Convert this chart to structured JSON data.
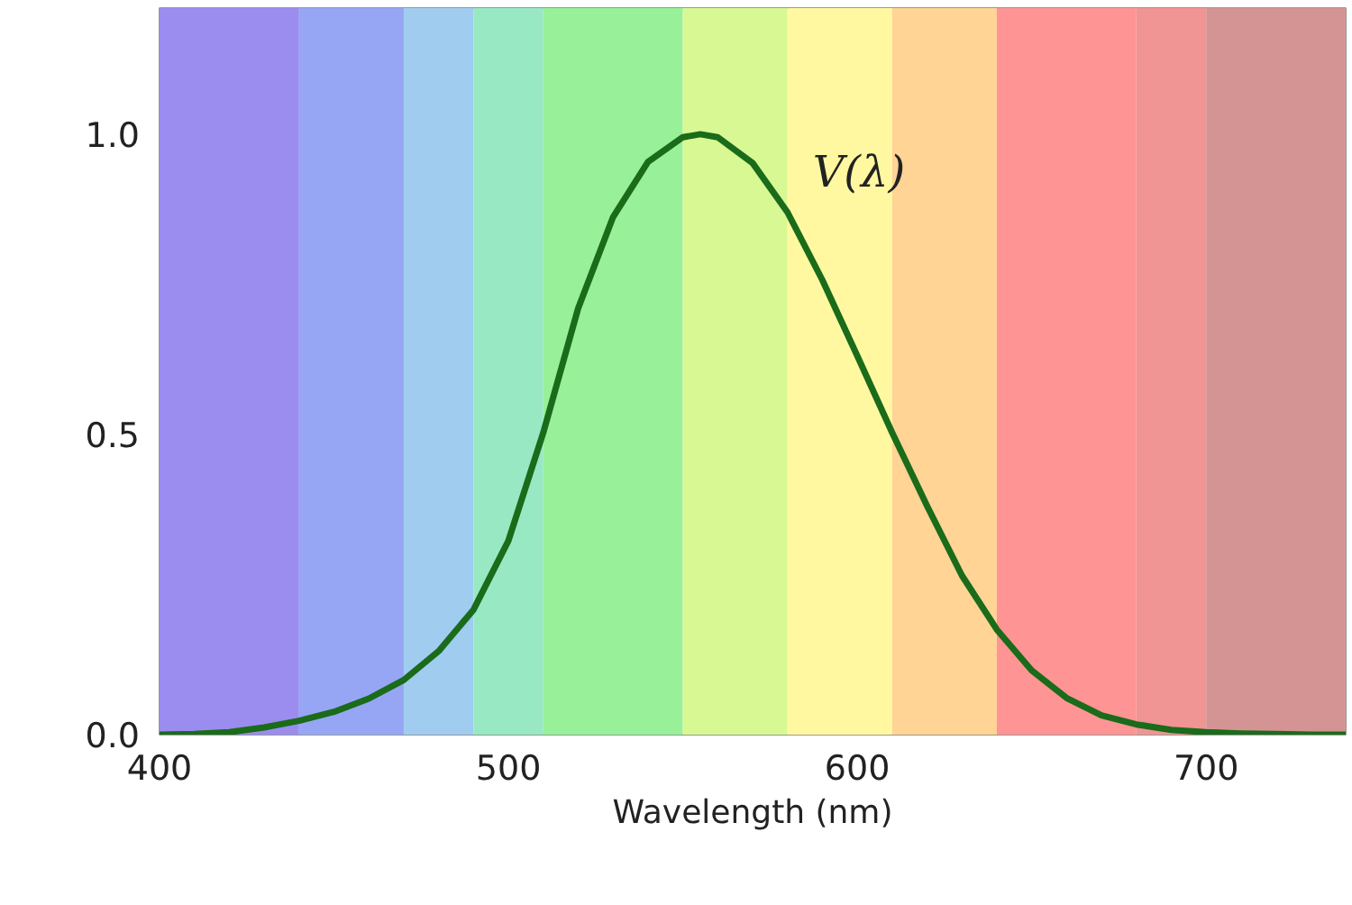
{
  "chart_data": {
    "type": "line",
    "xlabel": "Wavelength (nm)",
    "x": [
      400,
      410,
      420,
      430,
      440,
      450,
      460,
      470,
      480,
      490,
      500,
      510,
      520,
      530,
      540,
      550,
      555,
      560,
      570,
      580,
      590,
      600,
      610,
      620,
      630,
      640,
      650,
      660,
      670,
      680,
      690,
      700,
      710,
      720,
      730,
      740
    ],
    "series": [
      {
        "name": "V(λ)",
        "color": "#1a6b1a",
        "values": [
          0.0,
          0.001,
          0.004,
          0.012,
          0.023,
          0.038,
          0.06,
          0.091,
          0.139,
          0.208,
          0.323,
          0.503,
          0.71,
          0.862,
          0.954,
          0.995,
          1.0,
          0.995,
          0.952,
          0.87,
          0.757,
          0.631,
          0.503,
          0.381,
          0.265,
          0.175,
          0.107,
          0.061,
          0.032,
          0.017,
          0.008,
          0.004,
          0.002,
          0.001,
          0.0,
          0.0
        ]
      }
    ],
    "xlim": [
      400,
      740
    ],
    "ylim": [
      0,
      1.21
    ],
    "xticks": [
      400,
      500,
      600,
      700
    ],
    "yticks": [
      {
        "value": 0,
        "label": "0.0"
      },
      {
        "value": 0.5,
        "label": "0.5"
      },
      {
        "value": 1,
        "label": "1.0"
      }
    ],
    "grid": true,
    "legend": false,
    "marker": "none",
    "line_style": "solid",
    "bands": [
      {
        "axis": "x",
        "from": 400,
        "to": 440,
        "color": "#9b8cf0"
      },
      {
        "axis": "x",
        "from": 440,
        "to": 470,
        "color": "#96a6f4"
      },
      {
        "axis": "x",
        "from": 470,
        "to": 490,
        "color": "#a0ccf0"
      },
      {
        "axis": "x",
        "from": 490,
        "to": 510,
        "color": "#98e8c4"
      },
      {
        "axis": "x",
        "from": 510,
        "to": 550,
        "color": "#98f098"
      },
      {
        "axis": "x",
        "from": 550,
        "to": 580,
        "color": "#d8f894"
      },
      {
        "axis": "x",
        "from": 580,
        "to": 610,
        "color": "#fff8a0"
      },
      {
        "axis": "x",
        "from": 610,
        "to": 640,
        "color": "#ffd494"
      },
      {
        "axis": "x",
        "from": 640,
        "to": 680,
        "color": "#ff9494"
      },
      {
        "axis": "x",
        "from": 680,
        "to": 700,
        "color": "#f09494"
      },
      {
        "axis": "x",
        "from": 700,
        "to": 740,
        "color": "#d49494"
      }
    ]
  }
}
